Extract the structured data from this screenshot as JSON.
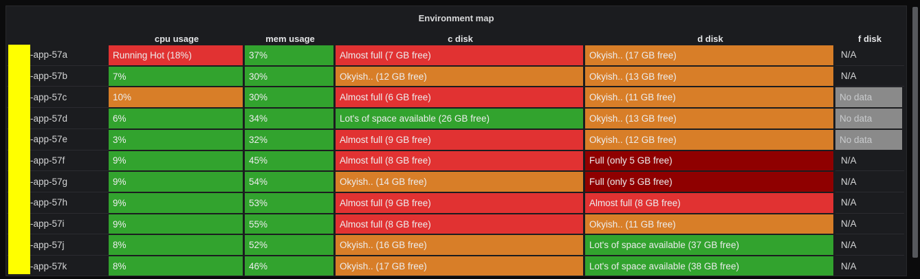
{
  "panel": {
    "title": "Environment map"
  },
  "table": {
    "columns": [
      {
        "key": "host",
        "label": ""
      },
      {
        "key": "cpu",
        "label": "cpu usage"
      },
      {
        "key": "mem",
        "label": "mem usage"
      },
      {
        "key": "cdisk",
        "label": "c disk"
      },
      {
        "key": "ddisk",
        "label": "d disk"
      },
      {
        "key": "fdisk",
        "label": "f disk"
      }
    ],
    "rows": [
      {
        "host": "-app-57a",
        "cells": [
          {
            "text": "Running Hot (18%)",
            "color": "red"
          },
          {
            "text": "37%",
            "color": "green"
          },
          {
            "text": "Almost full (7 GB free)",
            "color": "red"
          },
          {
            "text": "Okyish.. (17 GB free)",
            "color": "orange"
          },
          {
            "text": "N/A",
            "color": "none"
          }
        ]
      },
      {
        "host": "-app-57b",
        "cells": [
          {
            "text": "7%",
            "color": "green"
          },
          {
            "text": "30%",
            "color": "green"
          },
          {
            "text": "Okyish.. (12 GB free)",
            "color": "orange"
          },
          {
            "text": "Okyish.. (13 GB free)",
            "color": "orange"
          },
          {
            "text": "N/A",
            "color": "none"
          }
        ]
      },
      {
        "host": "-app-57c",
        "cells": [
          {
            "text": "10%",
            "color": "orange"
          },
          {
            "text": "30%",
            "color": "green"
          },
          {
            "text": "Almost full (6 GB free)",
            "color": "red"
          },
          {
            "text": "Okyish.. (11 GB free)",
            "color": "orange"
          },
          {
            "text": "No data",
            "color": "gray"
          }
        ]
      },
      {
        "host": "-app-57d",
        "cells": [
          {
            "text": "6%",
            "color": "green"
          },
          {
            "text": "34%",
            "color": "green"
          },
          {
            "text": "Lot's of space available (26 GB free)",
            "color": "green"
          },
          {
            "text": "Okyish.. (13 GB free)",
            "color": "orange"
          },
          {
            "text": "No data",
            "color": "gray"
          }
        ]
      },
      {
        "host": "-app-57e",
        "cells": [
          {
            "text": "3%",
            "color": "green"
          },
          {
            "text": "32%",
            "color": "green"
          },
          {
            "text": "Almost full (9 GB free)",
            "color": "red"
          },
          {
            "text": "Okyish.. (12 GB free)",
            "color": "orange"
          },
          {
            "text": "No data",
            "color": "gray"
          }
        ]
      },
      {
        "host": "-app-57f",
        "cells": [
          {
            "text": "9%",
            "color": "green"
          },
          {
            "text": "45%",
            "color": "green"
          },
          {
            "text": "Almost full (8 GB free)",
            "color": "red"
          },
          {
            "text": "Full (only 5 GB free)",
            "color": "dark_red"
          },
          {
            "text": "N/A",
            "color": "none"
          }
        ]
      },
      {
        "host": "-app-57g",
        "cells": [
          {
            "text": "9%",
            "color": "green"
          },
          {
            "text": "54%",
            "color": "green"
          },
          {
            "text": "Okyish.. (14 GB free)",
            "color": "orange"
          },
          {
            "text": "Full (only 5 GB free)",
            "color": "dark_red"
          },
          {
            "text": "N/A",
            "color": "none"
          }
        ]
      },
      {
        "host": "-app-57h",
        "cells": [
          {
            "text": "9%",
            "color": "green"
          },
          {
            "text": "53%",
            "color": "green"
          },
          {
            "text": "Almost full (9 GB free)",
            "color": "red"
          },
          {
            "text": "Almost full (8 GB free)",
            "color": "red"
          },
          {
            "text": "N/A",
            "color": "none"
          }
        ]
      },
      {
        "host": "-app-57i",
        "cells": [
          {
            "text": "9%",
            "color": "green"
          },
          {
            "text": "55%",
            "color": "green"
          },
          {
            "text": "Almost full (8 GB free)",
            "color": "red"
          },
          {
            "text": "Okyish.. (11 GB free)",
            "color": "orange"
          },
          {
            "text": "N/A",
            "color": "none"
          }
        ]
      },
      {
        "host": "-app-57j",
        "cells": [
          {
            "text": "8%",
            "color": "green"
          },
          {
            "text": "52%",
            "color": "green"
          },
          {
            "text": "Okyish.. (16 GB free)",
            "color": "orange"
          },
          {
            "text": "Lot's of space available (37 GB free)",
            "color": "green"
          },
          {
            "text": "N/A",
            "color": "none"
          }
        ]
      },
      {
        "host": "-app-57k",
        "cells": [
          {
            "text": "8%",
            "color": "green"
          },
          {
            "text": "46%",
            "color": "green"
          },
          {
            "text": "Okyish.. (17 GB free)",
            "color": "orange"
          },
          {
            "text": "Lot's of space available (38 GB free)",
            "color": "green"
          },
          {
            "text": "N/A",
            "color": "none"
          }
        ]
      }
    ]
  },
  "colors": {
    "green": "#32a32e",
    "orange": "#d87e28",
    "red": "#e13232",
    "dark_red": "#8f0000",
    "gray": "#8a8a8a",
    "redaction_yellow": "#ffff00",
    "panel_background": "#1b1c1f",
    "page_background": "#0b0b0c"
  }
}
